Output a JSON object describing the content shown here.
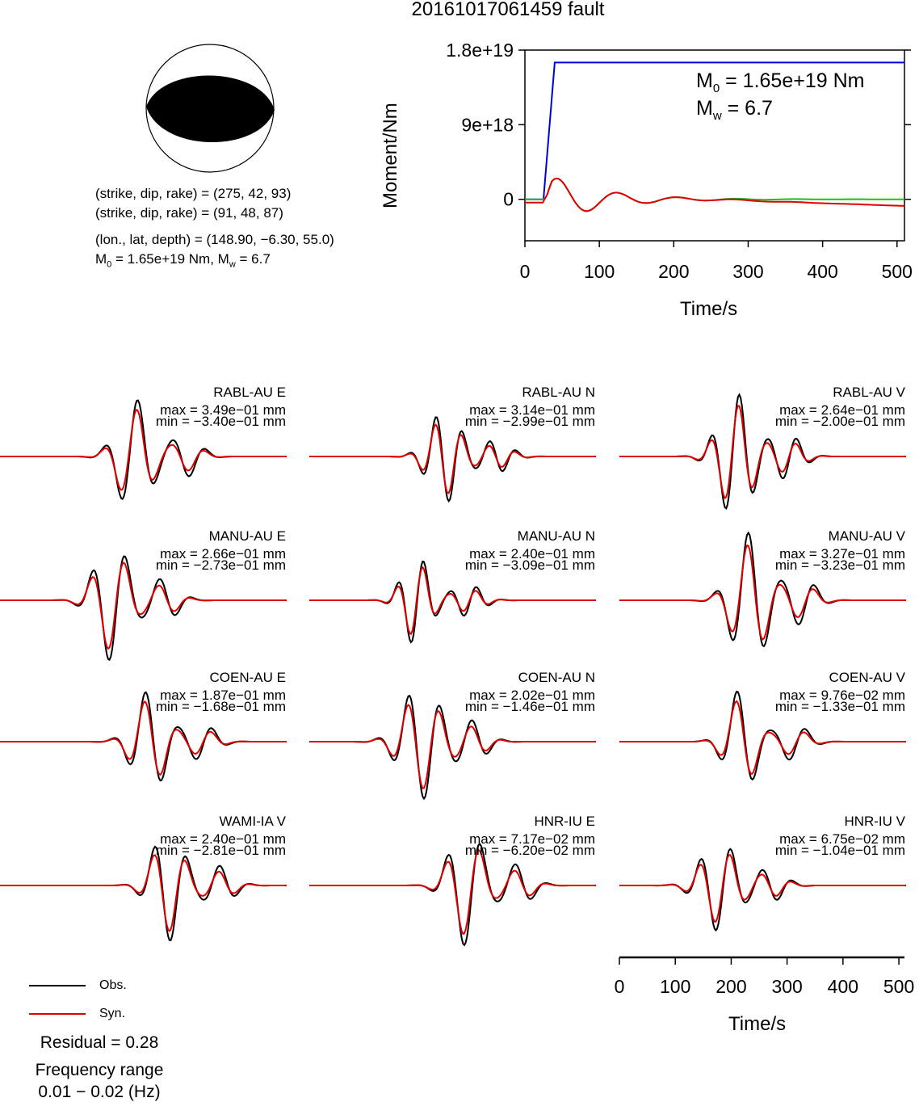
{
  "title": "20161017061459 fault",
  "mechanism": {
    "nodal_plane_1": "(strike, dip, rake) = (275, 42, 93)",
    "nodal_plane_2": "(strike, dip, rake) = (91, 48, 87)",
    "location": "(lon., lat, depth) = (148.90, −6.30, 55.0)",
    "moment_line_prefix": "M",
    "moment_line_sub": "0",
    "moment_line_rest": " = 1.65e+19 Nm, M",
    "moment_line_sub2": "w",
    "moment_line_end": " = 6.7"
  },
  "legend": {
    "obs": "Obs.",
    "syn": "Syn."
  },
  "residual": "Residual = 0.28",
  "frequency_label": "Frequency range",
  "frequency_value": "0.01 − 0.02 (Hz)",
  "colors": {
    "obs": "#000000",
    "syn": "#e00000",
    "moment": "#0000dd",
    "stf": "#22bb22"
  },
  "chart_data": [
    {
      "type": "line",
      "ylabel": "Moment/Nm",
      "xlabel": "Time/s",
      "xlim": [
        0,
        510
      ],
      "ylim": [
        -5e+18,
        1.8e+19
      ],
      "xticks": [
        "0",
        "100",
        "200",
        "300",
        "400",
        "500"
      ],
      "yticks": [
        "0",
        "9e+18",
        "1.8e+19"
      ],
      "annotation_m0": "M",
      "annotation_m0_sub": "0",
      "annotation_m0_rest": " = 1.65e+19 Nm",
      "annotation_mw": "M",
      "annotation_mw_sub": "w",
      "annotation_mw_rest": " = 6.7",
      "series": [
        {
          "x": [
            0,
            25,
            40,
            510
          ],
          "y": [
            0,
            0,
            1.65e+19,
            1.65e+19
          ]
        }
      ]
    },
    {
      "type": "line",
      "xlabel": "Time/s",
      "xticks": [
        "0",
        "100",
        "200",
        "300",
        "400",
        "500"
      ],
      "xlim": [
        0,
        510
      ],
      "series": [
        {
          "name": "Obs."
        },
        {
          "name": "Syn."
        }
      ],
      "stations": [
        {
          "name": "RABL-AU E",
          "max": "max = 3.49e−01 mm",
          "min": "min = −3.40e−01 mm"
        },
        {
          "name": "RABL-AU N",
          "max": "max = 3.14e−01 mm",
          "min": "min = −2.99e−01 mm"
        },
        {
          "name": "RABL-AU V",
          "max": "max = 2.64e−01 mm",
          "min": "min = −2.00e−01 mm"
        },
        {
          "name": "MANU-AU E",
          "max": "max = 2.66e−01 mm",
          "min": "min = −2.73e−01 mm"
        },
        {
          "name": "MANU-AU N",
          "max": "max = 2.40e−01 mm",
          "min": "min = −3.09e−01 mm"
        },
        {
          "name": "MANU-AU V",
          "max": "max = 3.27e−01 mm",
          "min": "min = −3.23e−01 mm"
        },
        {
          "name": "COEN-AU E",
          "max": "max = 1.87e−01 mm",
          "min": "min = −1.68e−01 mm"
        },
        {
          "name": "COEN-AU N",
          "max": "max = 2.02e−01 mm",
          "min": "min = −1.46e−01 mm"
        },
        {
          "name": "COEN-AU V",
          "max": "max = 9.76e−02 mm",
          "min": "min = −1.33e−01 mm"
        },
        {
          "name": "WAMI-IA V",
          "max": "max = 2.40e−01 mm",
          "min": "min = −2.81e−01 mm"
        },
        {
          "name": "HNR-IU E",
          "max": "max = 7.17e−02 mm",
          "min": "min = −6.20e−02 mm"
        },
        {
          "name": "HNR-IU V",
          "max": "max = 6.75e−02 mm",
          "min": "min = −1.04e−01 mm"
        }
      ]
    }
  ]
}
